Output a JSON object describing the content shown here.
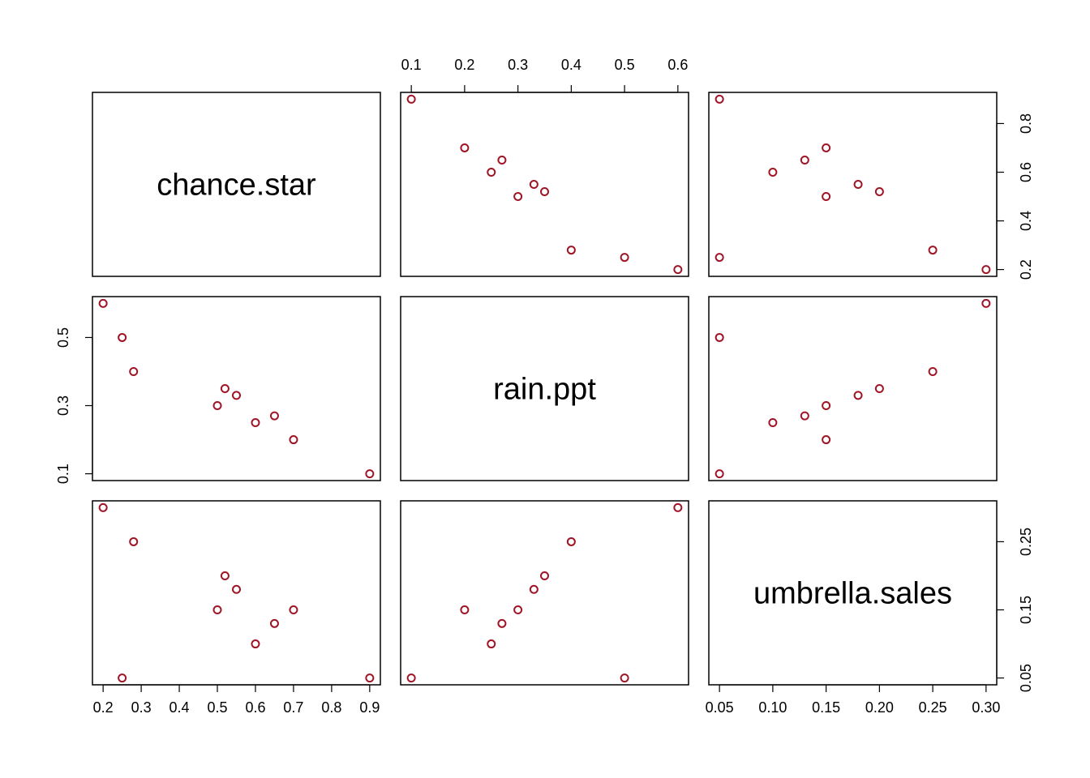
{
  "chart_data": {
    "type": "scatter",
    "variables": [
      "chance.star",
      "rain.ppt",
      "umbrella.sales"
    ],
    "point_color": "#a01526",
    "observations": {
      "chance.star": [
        0.9,
        0.7,
        0.6,
        0.65,
        0.5,
        0.55,
        0.52,
        0.28,
        0.25,
        0.2
      ],
      "rain.ppt": [
        0.1,
        0.2,
        0.25,
        0.27,
        0.3,
        0.33,
        0.35,
        0.4,
        0.5,
        0.6
      ],
      "umbrella.sales": [
        0.05,
        0.15,
        0.1,
        0.13,
        0.15,
        0.18,
        0.2,
        0.25,
        0.05,
        0.3
      ]
    },
    "axes": {
      "chance.star": {
        "range": [
          0.2,
          0.9
        ],
        "ticks": [
          0.2,
          0.3,
          0.4,
          0.5,
          0.6,
          0.7,
          0.8,
          0.9
        ],
        "tick_labels": [
          "0.2",
          "0.3",
          "0.4",
          "0.5",
          "0.6",
          "0.7",
          "0.8",
          "0.9"
        ],
        "v_ticks": [
          0.2,
          0.4,
          0.6,
          0.8
        ],
        "v_tick_labels": [
          "0.2",
          "0.4",
          "0.6",
          "0.8"
        ]
      },
      "rain.ppt": {
        "range": [
          0.1,
          0.6
        ],
        "ticks": [
          0.1,
          0.2,
          0.3,
          0.4,
          0.5,
          0.6
        ],
        "tick_labels": [
          "0.1",
          "0.2",
          "0.3",
          "0.4",
          "0.5",
          "0.6"
        ],
        "v_ticks": [
          0.1,
          0.3,
          0.5
        ],
        "v_tick_labels": [
          "0.1",
          "0.3",
          "0.5"
        ]
      },
      "umbrella.sales": {
        "range": [
          0.05,
          0.3
        ],
        "ticks": [
          0.05,
          0.1,
          0.15,
          0.2,
          0.25,
          0.3
        ],
        "tick_labels": [
          "0.05",
          "0.10",
          "0.15",
          "0.20",
          "0.25",
          "0.30"
        ],
        "v_ticks": [
          0.05,
          0.15,
          0.25
        ],
        "v_tick_labels": [
          "0.05",
          "0.15",
          "0.25"
        ]
      }
    },
    "grid": false,
    "legend": "none"
  }
}
